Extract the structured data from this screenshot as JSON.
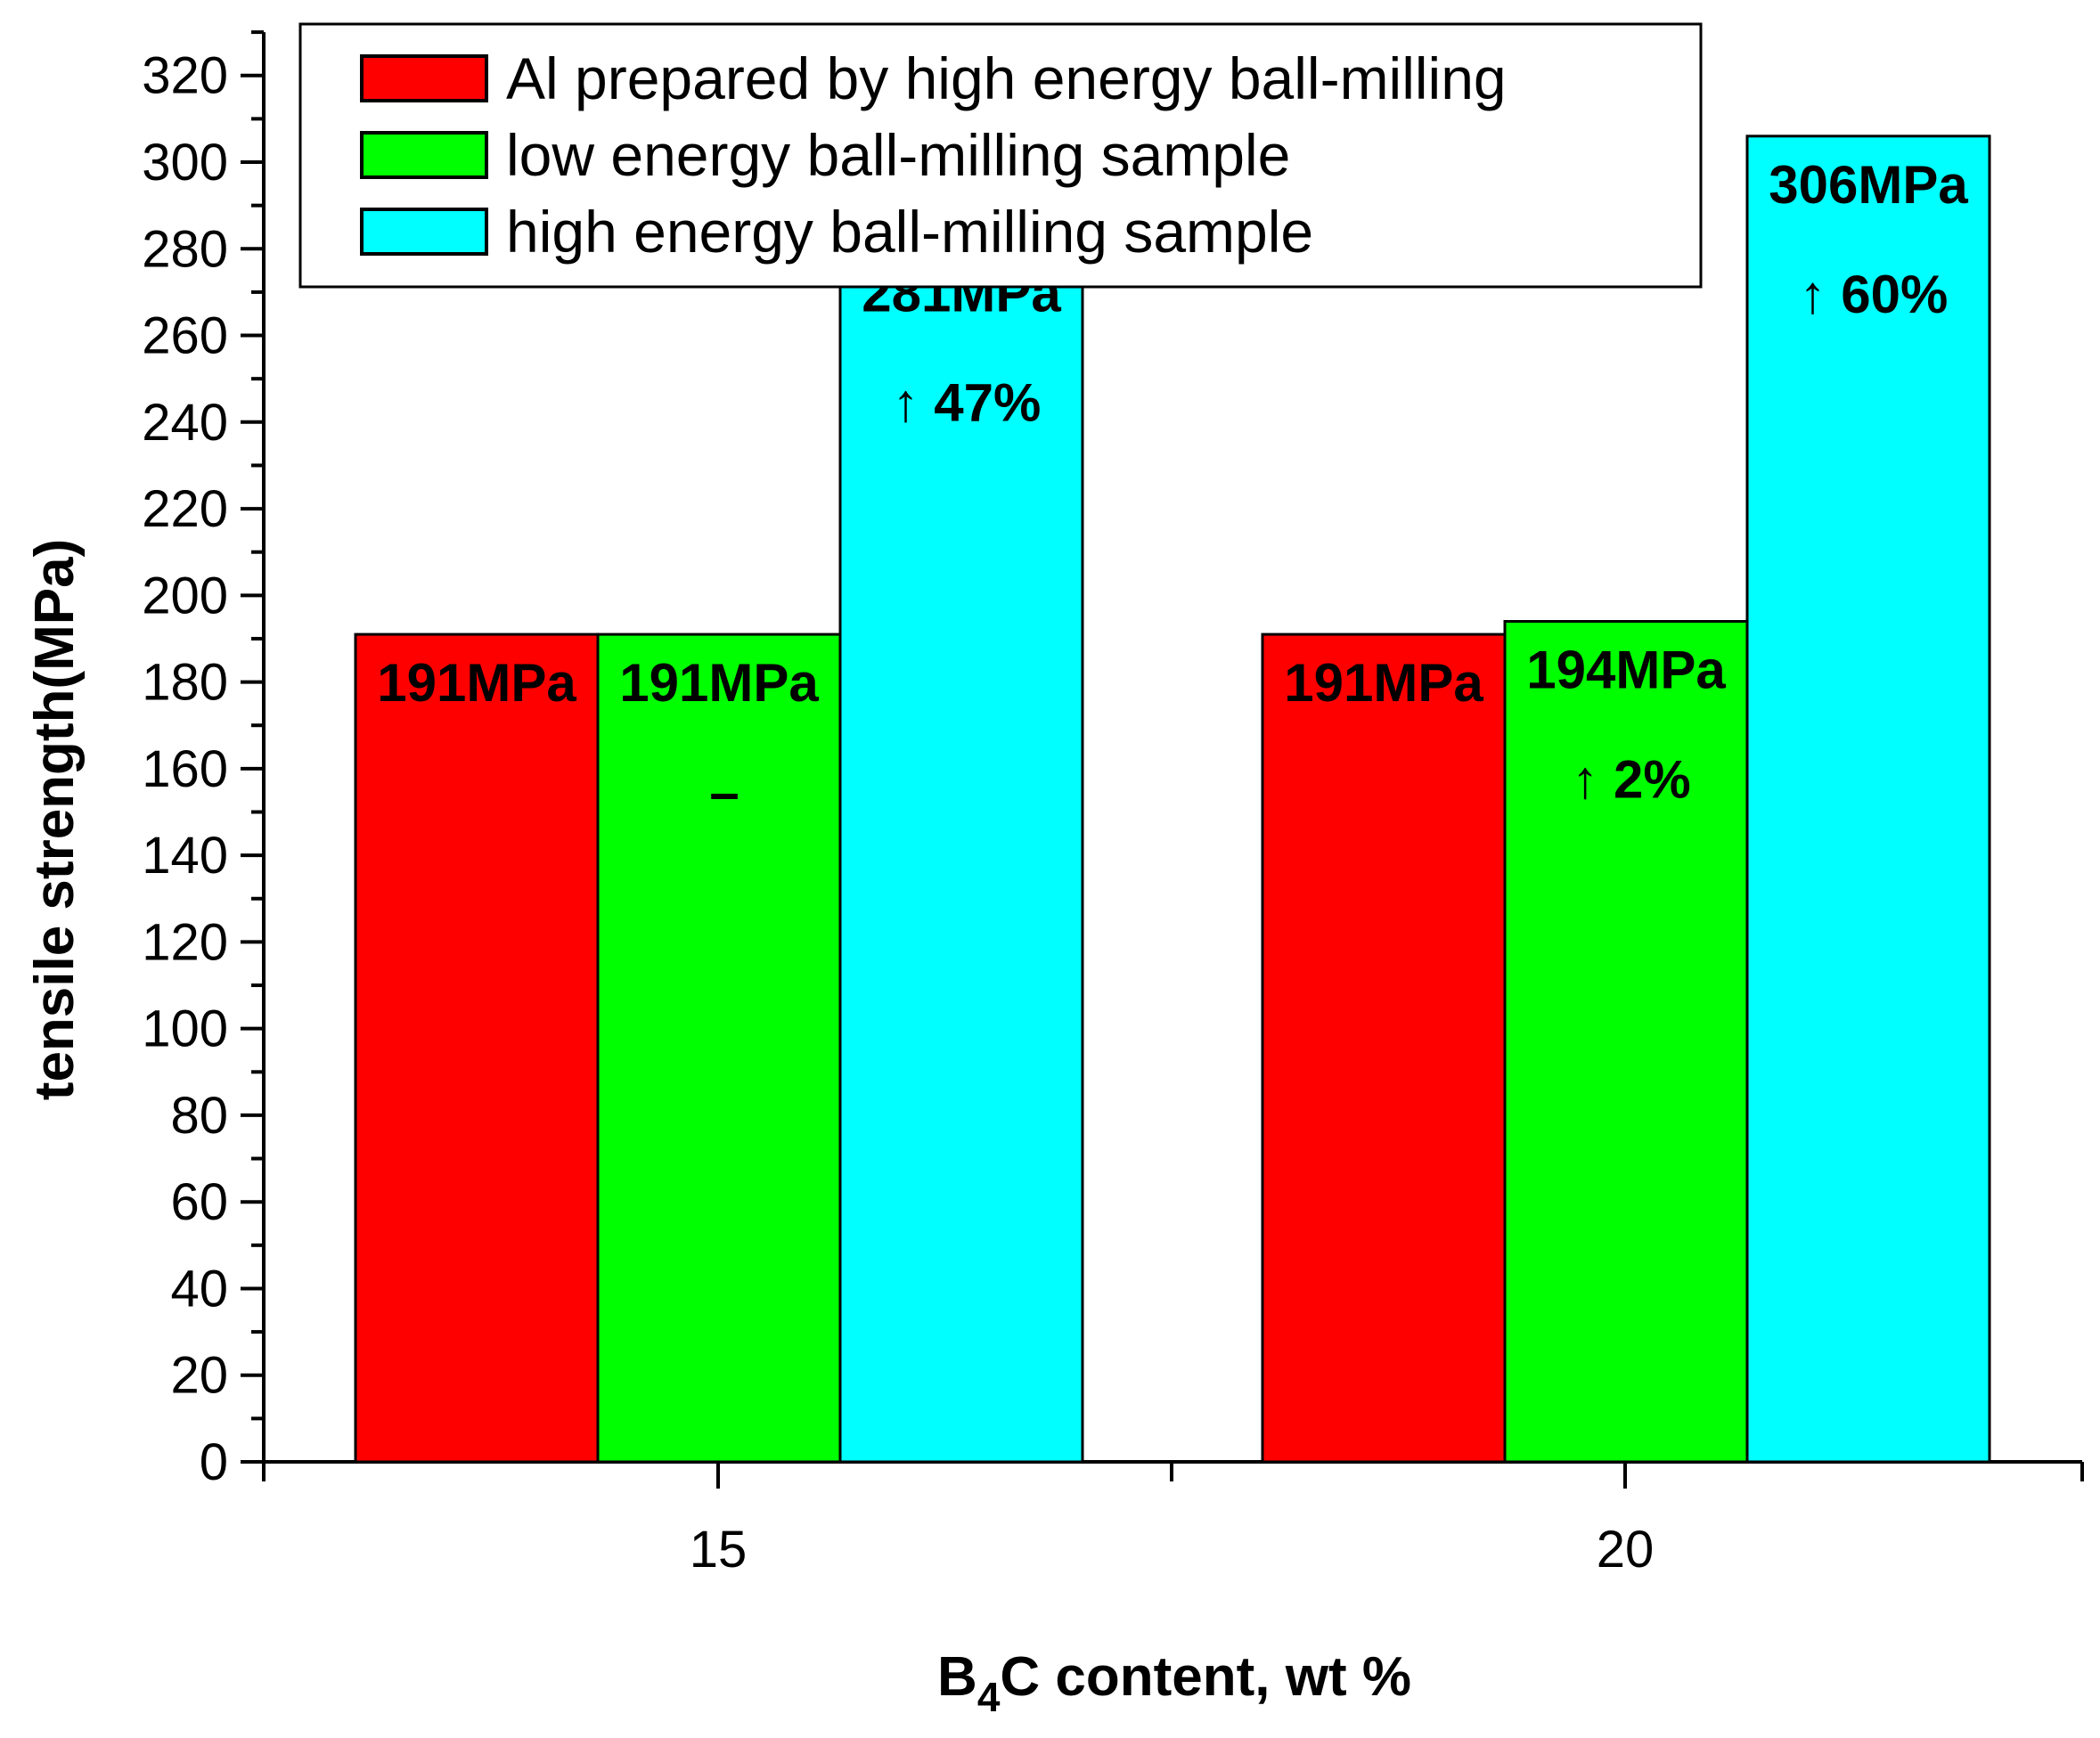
{
  "chart_data": {
    "type": "bar",
    "title": "",
    "xlabel": "B₄C content, wt %",
    "xlabel_main": "B",
    "xlabel_sub": "4",
    "xlabel_rest": "C content, wt %",
    "ylabel": "tensile strength(MPa)",
    "ylim": [
      0,
      330
    ],
    "yticks": [
      0,
      20,
      40,
      60,
      80,
      100,
      120,
      140,
      160,
      180,
      200,
      220,
      240,
      260,
      280,
      300,
      320
    ],
    "ytick_labels": [
      "0",
      "20",
      "40",
      "60",
      "80",
      "100",
      "120",
      "140",
      "160",
      "180",
      "200",
      "220",
      "240",
      "260",
      "280",
      "300",
      "320"
    ],
    "categories": [
      "15",
      "20"
    ],
    "grid": false,
    "legend_position": "top-center",
    "series": [
      {
        "name": "Al prepared by high energy ball-milling",
        "color": "#ff0000",
        "values": [
          191,
          191
        ],
        "value_labels": [
          "191MPa",
          "191MPa"
        ],
        "change_labels": [
          "",
          ""
        ]
      },
      {
        "name": "low energy ball-milling sample",
        "color": "#00ff00",
        "values": [
          191,
          194
        ],
        "value_labels": [
          "191MPa",
          "194MPa"
        ],
        "change_labels": [
          "–",
          "↑ 2%"
        ]
      },
      {
        "name": "high energy ball-milling sample",
        "color": "#00ffff",
        "values": [
          281,
          306
        ],
        "value_labels": [
          "281MPa",
          "306MPa"
        ],
        "change_labels": [
          "↑ 47%",
          "↑ 60%"
        ]
      }
    ]
  }
}
